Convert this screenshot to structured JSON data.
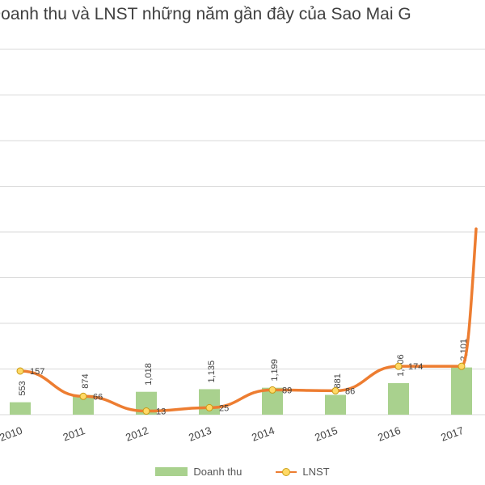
{
  "chart_data": {
    "type": "bar",
    "title": "Doanh thu và LNST những năm gần đây của Sao Mai G",
    "categories": [
      "2010",
      "2011",
      "2012",
      "2013",
      "2014",
      "2015",
      "2016",
      "2017"
    ],
    "series": [
      {
        "name": "Doanh thu",
        "type": "bar",
        "values": [
          553,
          874,
          1018,
          1135,
          1199,
          881,
          1406,
          2101
        ],
        "labels": [
          "553",
          "874",
          "1,018",
          "1,135",
          "1,199",
          "881",
          "1,406",
          "2,101"
        ]
      },
      {
        "name": "LNST",
        "type": "line",
        "values": [
          157,
          66,
          13,
          25,
          89,
          86,
          174,
          174
        ],
        "labels": [
          "157",
          "66",
          "13",
          "25",
          "89",
          "86",
          "174",
          ""
        ]
      }
    ],
    "grid": true,
    "legend_position": "bottom",
    "colors": {
      "bar": "#a9d18e",
      "line": "#ed7d31",
      "marker": "#ffd966",
      "grid": "#d9d9d9"
    }
  }
}
